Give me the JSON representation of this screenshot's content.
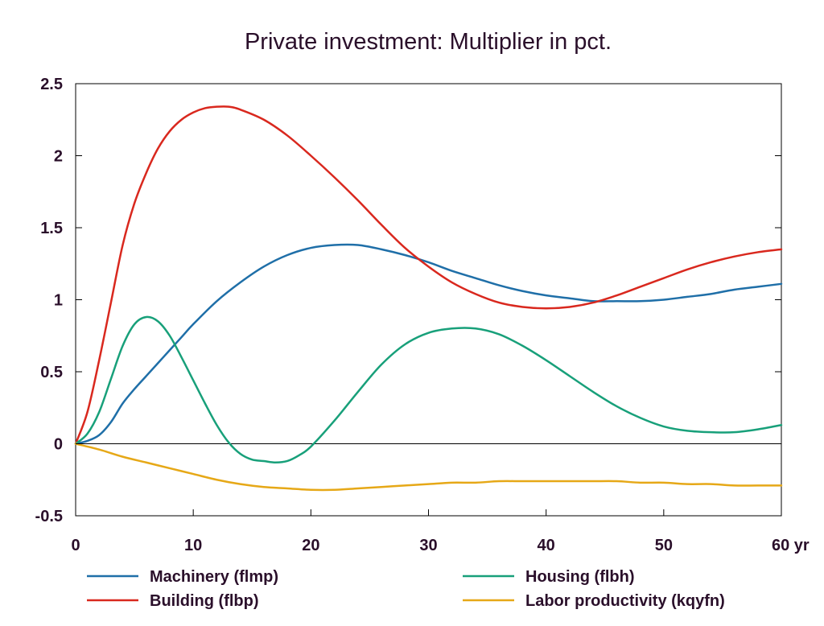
{
  "chart_data": {
    "type": "line",
    "title": "Private investment: Multiplier in pct.",
    "xlabel": "",
    "ylabel": "",
    "x_unit_label": "yr",
    "xlim": [
      0,
      60
    ],
    "ylim": [
      -0.5,
      2.5
    ],
    "x_ticks": [
      0,
      10,
      20,
      30,
      40,
      50,
      60
    ],
    "x_tick_labels": [
      "0",
      "10",
      "20",
      "30",
      "40",
      "50",
      "60 yr"
    ],
    "y_ticks": [
      -0.5,
      0,
      0.5,
      1,
      1.5,
      2,
      2.5
    ],
    "y_tick_labels": [
      "-0.5",
      "0",
      "0.5",
      "1",
      "1.5",
      "2",
      "2.5"
    ],
    "grid": false,
    "zero_line": true,
    "legend_position": "bottom",
    "series": [
      {
        "name": "Machinery (flmp)",
        "color": "#1f6fa8",
        "x": [
          0,
          1,
          2,
          3,
          4,
          5,
          6,
          7,
          8,
          9,
          10,
          12,
          14,
          16,
          18,
          20,
          22,
          24,
          26,
          28,
          30,
          32,
          34,
          36,
          38,
          40,
          42,
          44,
          46,
          48,
          50,
          52,
          54,
          56,
          58,
          60
        ],
        "y": [
          0,
          0.02,
          0.06,
          0.15,
          0.28,
          0.38,
          0.47,
          0.56,
          0.65,
          0.74,
          0.83,
          0.99,
          1.12,
          1.23,
          1.31,
          1.36,
          1.38,
          1.38,
          1.35,
          1.31,
          1.26,
          1.2,
          1.15,
          1.1,
          1.06,
          1.03,
          1.01,
          0.99,
          0.99,
          0.99,
          1.0,
          1.02,
          1.04,
          1.07,
          1.09,
          1.11
        ]
      },
      {
        "name": "Building (flbp)",
        "color": "#d9281e",
        "x": [
          0,
          1,
          2,
          3,
          4,
          5,
          6,
          7,
          8,
          9,
          10,
          11,
          12,
          13,
          14,
          16,
          18,
          20,
          22,
          24,
          26,
          28,
          30,
          32,
          34,
          36,
          38,
          40,
          42,
          44,
          46,
          48,
          50,
          52,
          54,
          56,
          58,
          60
        ],
        "y": [
          0,
          0.22,
          0.58,
          0.98,
          1.38,
          1.67,
          1.88,
          2.05,
          2.17,
          2.25,
          2.3,
          2.33,
          2.34,
          2.34,
          2.32,
          2.25,
          2.14,
          2.0,
          1.85,
          1.69,
          1.52,
          1.36,
          1.23,
          1.12,
          1.04,
          0.98,
          0.95,
          0.94,
          0.95,
          0.98,
          1.03,
          1.09,
          1.15,
          1.21,
          1.26,
          1.3,
          1.33,
          1.35
        ]
      },
      {
        "name": "Housing (flbh)",
        "color": "#18a07a",
        "x": [
          0,
          1,
          2,
          3,
          4,
          5,
          6,
          7,
          8,
          9,
          10,
          11,
          12,
          13,
          14,
          15,
          16,
          17,
          18,
          19,
          20,
          22,
          24,
          26,
          28,
          30,
          32,
          34,
          36,
          38,
          40,
          42,
          44,
          46,
          48,
          50,
          52,
          54,
          56,
          58,
          60
        ],
        "y": [
          0,
          0.07,
          0.22,
          0.45,
          0.68,
          0.83,
          0.88,
          0.85,
          0.75,
          0.6,
          0.44,
          0.28,
          0.13,
          0.01,
          -0.07,
          -0.11,
          -0.12,
          -0.13,
          -0.12,
          -0.08,
          -0.02,
          0.16,
          0.36,
          0.55,
          0.69,
          0.77,
          0.8,
          0.8,
          0.76,
          0.68,
          0.58,
          0.47,
          0.36,
          0.26,
          0.18,
          0.12,
          0.09,
          0.08,
          0.08,
          0.1,
          0.13
        ]
      },
      {
        "name": "Labor productivity (kqyfn)",
        "color": "#e6a817",
        "x": [
          0,
          2,
          4,
          6,
          8,
          10,
          12,
          14,
          16,
          18,
          20,
          22,
          24,
          26,
          28,
          30,
          32,
          34,
          36,
          38,
          40,
          42,
          44,
          46,
          48,
          50,
          52,
          54,
          56,
          58,
          60
        ],
        "y": [
          0,
          -0.04,
          -0.09,
          -0.13,
          -0.17,
          -0.21,
          -0.25,
          -0.28,
          -0.3,
          -0.31,
          -0.32,
          -0.32,
          -0.31,
          -0.3,
          -0.29,
          -0.28,
          -0.27,
          -0.27,
          -0.26,
          -0.26,
          -0.26,
          -0.26,
          -0.26,
          -0.26,
          -0.27,
          -0.27,
          -0.28,
          -0.28,
          -0.29,
          -0.29,
          -0.29
        ]
      }
    ]
  }
}
